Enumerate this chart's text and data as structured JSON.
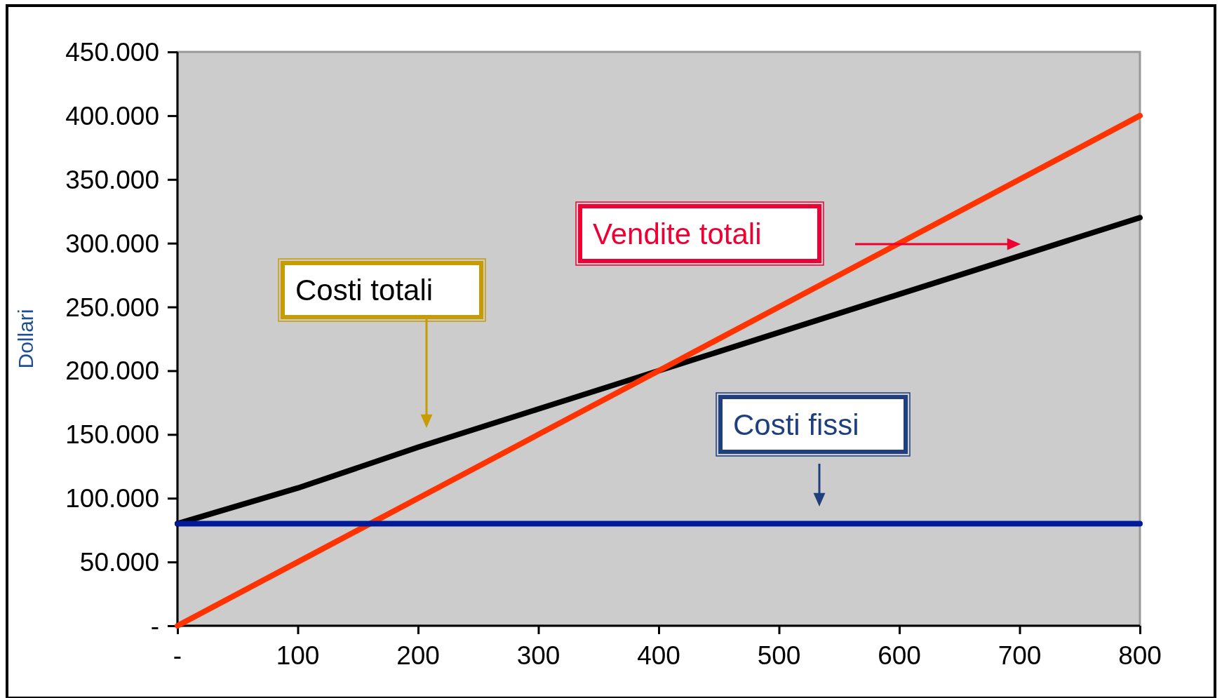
{
  "chart_data": {
    "type": "line",
    "ylabel": "Dollari",
    "x": [
      0,
      100,
      200,
      300,
      400,
      500,
      600,
      700,
      800
    ],
    "series": [
      {
        "name": "Costi totali",
        "color": "#000000",
        "values": [
          80000,
          108000,
          140000,
          170000,
          200000,
          230000,
          260000,
          290000,
          320000
        ]
      },
      {
        "name": "Vendite totali",
        "color": "#ff3300",
        "values": [
          0,
          50000,
          100000,
          150000,
          200000,
          250000,
          300000,
          350000,
          400000
        ]
      },
      {
        "name": "Costi fissi",
        "color": "#001a99",
        "values": [
          80000,
          80000,
          80000,
          80000,
          80000,
          80000,
          80000,
          80000,
          80000
        ]
      }
    ],
    "xlim": [
      0,
      800
    ],
    "ylim": [
      0,
      450000
    ],
    "xticks": [
      {
        "value": 0,
        "label": "-"
      },
      100,
      200,
      300,
      400,
      500,
      600,
      700,
      800
    ],
    "yticks": [
      {
        "value": 0,
        "label": "-"
      },
      {
        "value": 50000,
        "label": "50.000"
      },
      {
        "value": 100000,
        "label": "100.000"
      },
      {
        "value": 150000,
        "label": "150.000"
      },
      {
        "value": 200000,
        "label": "200.000"
      },
      {
        "value": 250000,
        "label": "250.000"
      },
      {
        "value": 300000,
        "label": "300.000"
      },
      {
        "value": 350000,
        "label": "350.000"
      },
      {
        "value": 400000,
        "label": "400.000"
      },
      {
        "value": 450000,
        "label": "450.000"
      }
    ],
    "grid": false,
    "legend": false,
    "marker": "none",
    "line_style": "solid"
  }
}
